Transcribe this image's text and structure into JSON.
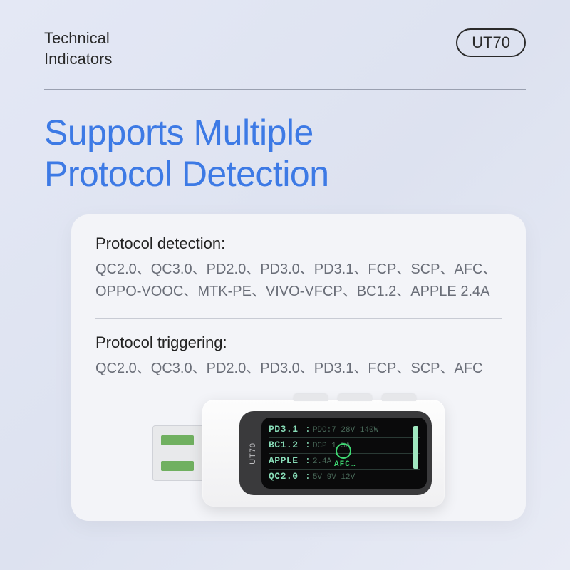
{
  "header": {
    "label_line1": "Technical",
    "label_line2": "Indicators",
    "badge": "UT70"
  },
  "title_line1": "Supports Multiple",
  "title_line2": "Protocol Detection",
  "card": {
    "detection": {
      "title": "Protocol detection:",
      "body": "QC2.0、QC3.0、PD2.0、PD3.0、PD3.1、FCP、SCP、AFC、OPPO-VOOC、MTK-PE、VIVO-VFCP、BC1.2、APPLE 2.4A"
    },
    "triggering": {
      "title": "Protocol triggering:",
      "body": "QC2.0、QC3.0、PD2.0、PD3.0、PD3.1、FCP、SCP、AFC"
    }
  },
  "device": {
    "product_label": "UT70",
    "screen": {
      "rows": [
        {
          "key": "PD3.1",
          "val": "PDO:7 28V 140W"
        },
        {
          "key": "BC1.2",
          "val": "DCP  1.5A"
        },
        {
          "key": "APPLE",
          "val": "2.4A"
        },
        {
          "key": "QC2.0",
          "val": "5V 9V 12V"
        }
      ],
      "afc_label": "AFC…"
    }
  },
  "colors": {
    "accent_blue": "#3d7ae5",
    "bg_card": "#f3f4f8",
    "text_body": "#6a6e78",
    "screen_green": "#88ddb8",
    "screen_bright": "#3fd873"
  }
}
